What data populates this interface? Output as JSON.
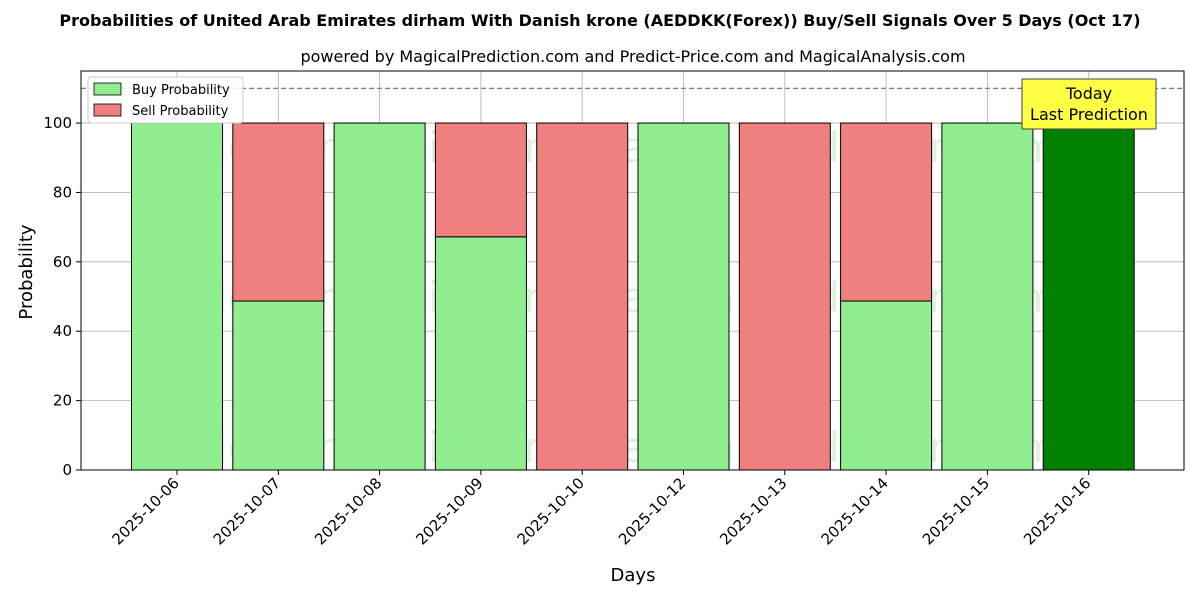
{
  "title": "Probabilities of United Arab Emirates dirham With Danish krone (AEDDKK(Forex)) Buy/Sell Signals Over 5 Days (Oct 17)",
  "subtitle": "powered by MagicalPrediction.com and Predict-Price.com and MagicalAnalysis.com",
  "watermarks": [
    "MagicalAnalysis.com",
    "MagicalPrediction.com"
  ],
  "annotation": {
    "line1": "Today",
    "line2": "Last Prediction"
  },
  "colors": {
    "buy": "#90ee90",
    "sell": "#f08080",
    "today": "#008000",
    "annotation_bg": "#ffff44"
  },
  "chart_data": {
    "type": "bar",
    "stacked": true,
    "categories": [
      "2025-10-06",
      "2025-10-07",
      "2025-10-08",
      "2025-10-09",
      "2025-10-10",
      "2025-10-12",
      "2025-10-13",
      "2025-10-14",
      "2025-10-15",
      "2025-10-16"
    ],
    "series": [
      {
        "name": "Buy Probability",
        "values": [
          100,
          48.7,
          100,
          67.2,
          0,
          100,
          0,
          48.7,
          100,
          100
        ]
      },
      {
        "name": "Sell Probability",
        "values": [
          0,
          51.3,
          0,
          32.8,
          100,
          0,
          100,
          51.3,
          0,
          0
        ]
      }
    ],
    "xlabel": "Days",
    "ylabel": "Probability",
    "ylim": [
      0,
      115
    ],
    "yticks": [
      0,
      20,
      40,
      60,
      80,
      100
    ],
    "reference_line": 110,
    "grid": true,
    "legend": "top-left"
  }
}
